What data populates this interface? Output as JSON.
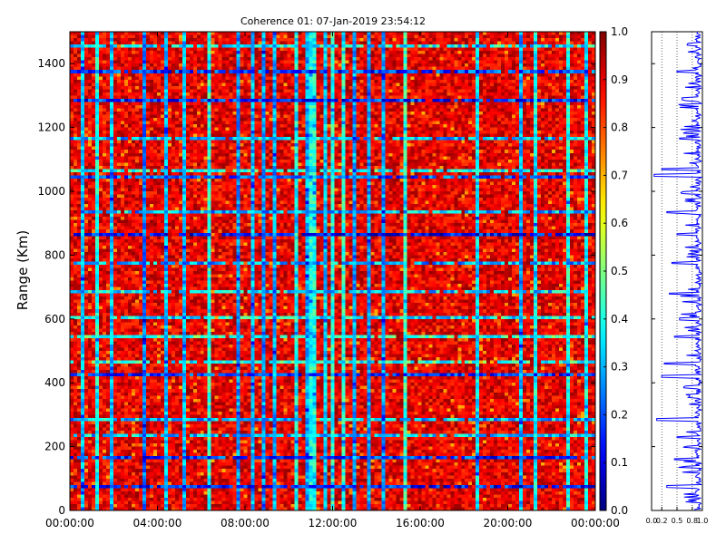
{
  "chart_data": [
    {
      "type": "heatmap",
      "title": "Coherence 01: 07-Jan-2019 23:54:12",
      "xlabel": "",
      "ylabel": "Range (Km)",
      "x_tick_labels": [
        "00:00:00",
        "04:00:00",
        "08:00:00",
        "12:00:00",
        "16:00:00",
        "20:00:00",
        "00:00:00"
      ],
      "y_tick_labels": [
        "0",
        "200",
        "400",
        "600",
        "800",
        "1000",
        "1200",
        "1400"
      ],
      "y_ticks": [
        0,
        200,
        400,
        600,
        800,
        1000,
        1200,
        1400
      ],
      "xlim_hours": [
        0,
        24
      ],
      "ylim": [
        0,
        1500
      ],
      "colormap": "jet",
      "colorbar": {
        "range": [
          0,
          1
        ],
        "tick_labels": [
          "0.0",
          "0.1",
          "0.2",
          "0.3",
          "0.4",
          "0.5",
          "0.6",
          "0.7",
          "0.8",
          "0.9",
          "1.0"
        ]
      },
      "low_coherence_columns_hours": [
        0.5,
        1.2,
        1.8,
        3.3,
        4.3,
        5.2,
        6.3,
        7.7,
        8.3,
        8.8,
        9.4,
        10.4,
        10.8,
        11.2,
        11.6,
        12.0,
        12.5,
        13.0,
        13.6,
        14.4,
        15.3,
        18.6,
        20.7,
        21.3,
        22.8,
        23.6
      ],
      "low_coherence_rows_km": [
        75,
        160,
        230,
        285,
        420,
        460,
        545,
        600,
        680,
        775,
        865,
        935,
        1050,
        1070,
        1165,
        1290,
        1375,
        1460
      ],
      "grid": false,
      "legend": "none"
    },
    {
      "type": "line",
      "orientation": "vertical",
      "x_tick_labels": [
        "0.0",
        "0.2",
        "0.5",
        "0.8",
        "1.0"
      ],
      "xlim": [
        0,
        1
      ],
      "ylim": [
        0,
        1500
      ],
      "line_color": "#0000ff",
      "grid": true,
      "profile_km": [
        0,
        75,
        160,
        230,
        285,
        360,
        420,
        460,
        545,
        600,
        680,
        775,
        865,
        935,
        1050,
        1070,
        1165,
        1290,
        1375,
        1460,
        1500
      ],
      "profile_coherence": [
        0.85,
        0.3,
        0.45,
        0.5,
        0.1,
        0.75,
        0.2,
        0.25,
        0.45,
        0.55,
        0.35,
        0.4,
        0.5,
        0.3,
        0.05,
        0.2,
        0.55,
        0.6,
        0.5,
        0.7,
        0.9
      ]
    }
  ]
}
